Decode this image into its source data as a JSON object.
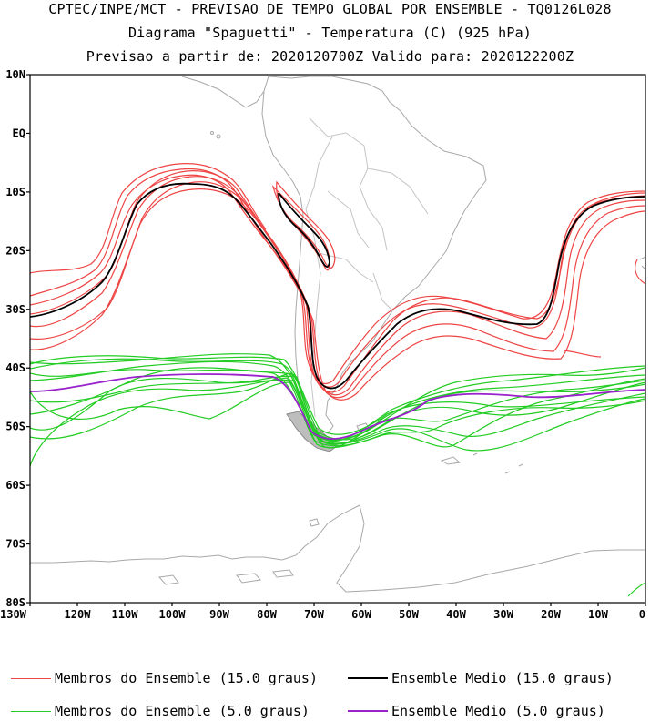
{
  "titles": {
    "line1": "CPTEC/INPE/MCT - PREVISAO DE TEMPO GLOBAL POR ENSEMBLE - TQ0126L028",
    "line2": "Diagrama \"Spaguetti\" - Temperatura (C) (925 hPa)",
    "line3": "Previsao a partir de: 2020120700Z  Valido para: 2020122200Z"
  },
  "map": {
    "lat_ticks": [
      "10N",
      "EQ",
      "10S",
      "20S",
      "30S",
      "40S",
      "50S",
      "60S",
      "70S",
      "80S"
    ],
    "lon_ticks": [
      "130W",
      "120W",
      "110W",
      "100W",
      "90W",
      "80W",
      "70W",
      "60W",
      "50W",
      "40W",
      "30W",
      "20W",
      "10W",
      "0"
    ],
    "lat_range": [
      -80,
      10
    ],
    "lon_range": [
      -130,
      0
    ]
  },
  "colors": {
    "member_15": "#ee4444",
    "mean_15": "#000000",
    "member_5": "#22cc22",
    "mean_5": "#9922cc",
    "land": "#a8a8a8"
  },
  "legend": [
    {
      "label": "Membros do Ensemble (15.0 graus)",
      "color": "#ee4444"
    },
    {
      "label": "Ensemble Medio (15.0 graus)",
      "color": "#000000"
    },
    {
      "label": "Membros do Ensemble (5.0 graus)",
      "color": "#22cc22"
    },
    {
      "label": "Ensemble Medio (5.0 graus)",
      "color": "#9922cc"
    }
  ]
}
